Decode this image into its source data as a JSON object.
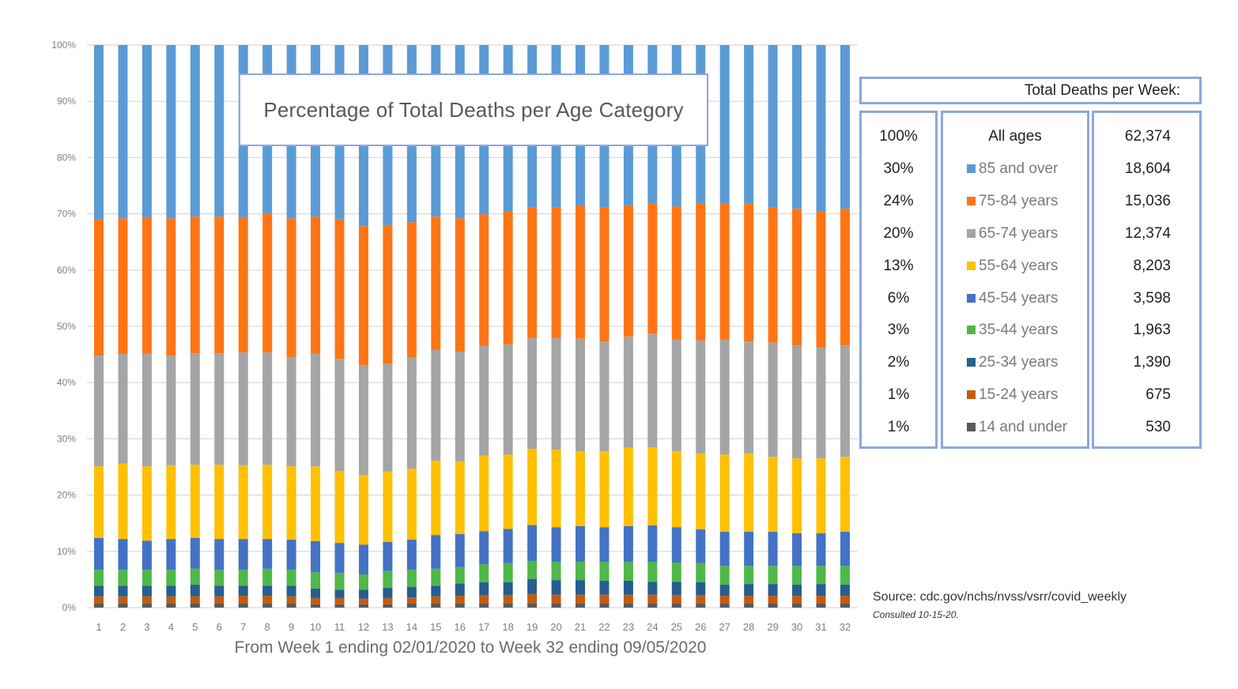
{
  "chart_data": {
    "type": "bar",
    "stacked": true,
    "normalized": true,
    "title": "Percentage of Total  Deaths per Age Category",
    "xlabel": "From Week 1 ending 02/01/2020 to Week 32 ending 09/05/2020",
    "ylabel": "",
    "ylim": [
      0,
      100
    ],
    "yticks": [
      "0%",
      "10%",
      "20%",
      "30%",
      "40%",
      "50%",
      "60%",
      "70%",
      "80%",
      "90%",
      "100%"
    ],
    "grid": true,
    "categories": [
      "1",
      "2",
      "3",
      "4",
      "5",
      "6",
      "7",
      "8",
      "9",
      "10",
      "11",
      "12",
      "13",
      "14",
      "15",
      "16",
      "17",
      "18",
      "19",
      "20",
      "21",
      "22",
      "23",
      "24",
      "25",
      "26",
      "27",
      "28",
      "29",
      "30",
      "31",
      "32"
    ],
    "series": [
      {
        "name": "14 and under",
        "color": "#595959",
        "values": [
          0.7,
          0.7,
          0.7,
          0.7,
          0.7,
          0.7,
          0.7,
          0.7,
          0.7,
          0.6,
          0.6,
          0.6,
          0.6,
          0.7,
          0.7,
          0.7,
          0.7,
          0.7,
          0.8,
          0.8,
          0.8,
          0.8,
          0.8,
          0.8,
          0.8,
          0.8,
          0.7,
          0.7,
          0.7,
          0.7,
          0.7,
          0.7
        ]
      },
      {
        "name": "15-24 years",
        "color": "#c55a11",
        "values": [
          1.3,
          1.3,
          1.3,
          1.3,
          1.3,
          1.3,
          1.4,
          1.4,
          1.3,
          1.1,
          1.1,
          1.0,
          1.1,
          1.1,
          1.3,
          1.4,
          1.5,
          1.5,
          1.6,
          1.5,
          1.5,
          1.5,
          1.5,
          1.5,
          1.4,
          1.4,
          1.4,
          1.4,
          1.4,
          1.4,
          1.4,
          1.4
        ]
      },
      {
        "name": "25-34 years",
        "color": "#255e91",
        "values": [
          1.9,
          1.9,
          1.9,
          1.9,
          2.1,
          1.9,
          1.8,
          1.8,
          1.9,
          1.7,
          1.5,
          1.6,
          1.8,
          1.9,
          1.9,
          2.2,
          2.3,
          2.3,
          2.7,
          2.6,
          2.6,
          2.5,
          2.5,
          2.3,
          2.4,
          2.3,
          2.0,
          2.1,
          2.1,
          2.0,
          2.1,
          2.0
        ]
      },
      {
        "name": "35-44 years",
        "color": "#4fb848",
        "values": [
          2.8,
          2.8,
          2.8,
          2.8,
          2.8,
          2.8,
          2.8,
          3.0,
          2.8,
          2.9,
          3.0,
          2.7,
          3.0,
          3.0,
          3.0,
          2.9,
          3.2,
          3.4,
          3.2,
          3.2,
          3.2,
          3.3,
          3.3,
          3.5,
          3.4,
          3.4,
          3.3,
          3.2,
          3.2,
          3.3,
          3.2,
          3.3
        ]
      },
      {
        "name": "45-54 years",
        "color": "#4472c4",
        "values": [
          5.7,
          5.5,
          5.2,
          5.5,
          5.5,
          5.5,
          5.5,
          5.3,
          5.4,
          5.5,
          5.3,
          5.3,
          5.2,
          5.4,
          6.0,
          5.9,
          5.9,
          6.1,
          6.4,
          6.2,
          6.4,
          6.2,
          6.4,
          6.5,
          6.3,
          6.0,
          6.1,
          6.1,
          6.1,
          5.8,
          5.8,
          6.1
        ]
      },
      {
        "name": "55-64 years",
        "color": "#ffc000",
        "values": [
          12.7,
          13.4,
          13.2,
          13.1,
          13.0,
          13.2,
          13.1,
          13.2,
          13.0,
          13.3,
          12.8,
          12.4,
          12.5,
          12.6,
          13.2,
          12.9,
          13.4,
          13.2,
          13.5,
          13.8,
          13.3,
          13.5,
          13.9,
          13.9,
          13.5,
          13.5,
          13.7,
          13.9,
          13.3,
          13.3,
          13.3,
          13.3
        ]
      },
      {
        "name": "65-74 years",
        "color": "#a5a5a5",
        "values": [
          19.7,
          19.5,
          20.0,
          19.5,
          19.8,
          19.8,
          20.1,
          20.0,
          19.4,
          20.0,
          19.9,
          19.5,
          19.2,
          19.7,
          19.7,
          19.5,
          19.5,
          19.6,
          19.7,
          19.8,
          20.0,
          19.5,
          19.8,
          20.2,
          19.8,
          20.1,
          20.4,
          19.9,
          20.3,
          20.1,
          19.7,
          19.8
        ]
      },
      {
        "name": "75-84 years",
        "color": "#ff7515",
        "values": [
          24.2,
          24.1,
          24.3,
          24.4,
          24.3,
          24.3,
          24.0,
          24.7,
          24.7,
          24.4,
          24.8,
          24.7,
          24.6,
          24.1,
          23.7,
          23.7,
          23.4,
          23.7,
          23.3,
          23.3,
          23.7,
          23.8,
          23.3,
          23.2,
          23.7,
          24.3,
          24.3,
          24.5,
          24.1,
          24.3,
          24.3,
          24.3
        ]
      },
      {
        "name": "85 and over",
        "color": "#5b9bd5",
        "values": [
          31.0,
          30.8,
          30.6,
          30.8,
          30.5,
          30.5,
          30.6,
          29.9,
          30.8,
          30.5,
          31.0,
          32.2,
          32.0,
          31.5,
          30.5,
          30.8,
          30.1,
          29.5,
          28.8,
          28.8,
          28.5,
          28.9,
          28.5,
          28.1,
          28.7,
          28.2,
          28.1,
          28.2,
          28.8,
          29.1,
          29.5,
          29.1
        ]
      }
    ],
    "annotation_table": {
      "header": "Total Deaths per Week:",
      "rows": [
        {
          "pct": "100%",
          "label": "All ages",
          "count": "62,374"
        },
        {
          "pct": "30%",
          "label": "85 and over",
          "count": "18,604"
        },
        {
          "pct": "24%",
          "label": "75-84 years",
          "count": "15,036"
        },
        {
          "pct": "20%",
          "label": "65-74 years",
          "count": "12,374"
        },
        {
          "pct": "13%",
          "label": "55-64 years",
          "count": "8,203"
        },
        {
          "pct": "6%",
          "label": "45-54 years",
          "count": "3,598"
        },
        {
          "pct": "3%",
          "label": "35-44 years",
          "count": "1,963"
        },
        {
          "pct": "2%",
          "label": "25-34 years",
          "count": "1,390"
        },
        {
          "pct": "1%",
          "label": "15-24 years",
          "count": "675"
        },
        {
          "pct": "1%",
          "label": "14 and under",
          "count": "530"
        }
      ]
    },
    "source": "Source: cdc.gov/nchs/nvss/vsrr/covid_weekly",
    "consulted": "Consulted 10-15-20."
  },
  "legend_colors": {
    "85 and over": "#5b9bd5",
    "75-84 years": "#ff7515",
    "65-74 years": "#a5a5a5",
    "55-64 years": "#ffc000",
    "45-54 years": "#4472c4",
    "35-44 years": "#4fb848",
    "25-34 years": "#255e91",
    "15-24 years": "#c55a11",
    "14 and under": "#595959"
  }
}
